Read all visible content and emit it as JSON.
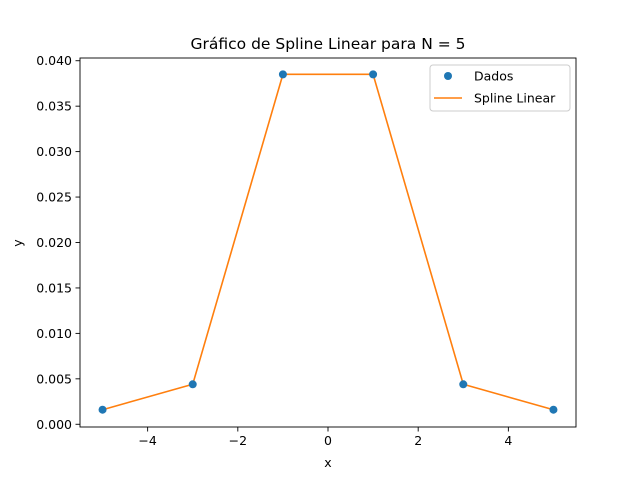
{
  "chart_data": {
    "type": "line",
    "title": "Gráfico de Spline Linear para N = 5",
    "xlabel": "x",
    "ylabel": "y",
    "xlim": [
      -5.5,
      5.5
    ],
    "ylim": [
      -0.0003,
      0.0403
    ],
    "x_ticks": [
      -4,
      -2,
      0,
      2,
      4
    ],
    "x_tick_labels": [
      "−4",
      "−2",
      "0",
      "2",
      "4"
    ],
    "y_ticks": [
      0.0,
      0.005,
      0.01,
      0.015,
      0.02,
      0.025,
      0.03,
      0.035,
      0.04
    ],
    "y_tick_labels": [
      "0.000",
      "0.005",
      "0.010",
      "0.015",
      "0.020",
      "0.025",
      "0.030",
      "0.035",
      "0.040"
    ],
    "grid": false,
    "legend_position": "top-right",
    "series": [
      {
        "name": "Dados",
        "kind": "scatter",
        "color": "#1f77b4",
        "x": [
          -5,
          -3,
          -1,
          1,
          3,
          5
        ],
        "y": [
          0.0016,
          0.0044,
          0.0385,
          0.0385,
          0.0044,
          0.0016
        ]
      },
      {
        "name": "Spline Linear",
        "kind": "line",
        "color": "#ff7f0e",
        "x": [
          -5,
          -3,
          -1,
          1,
          3,
          5
        ],
        "y": [
          0.0016,
          0.0044,
          0.0385,
          0.0385,
          0.0044,
          0.0016
        ]
      }
    ]
  }
}
